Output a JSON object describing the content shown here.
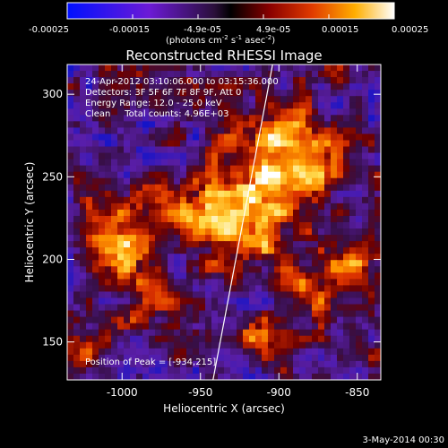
{
  "colorbar": {
    "tick_labels": [
      "-0.00025",
      "-0.00015",
      "-4.9e-05",
      "4.9e-05",
      "0.00015",
      "0.00025"
    ],
    "unit_label_parts": [
      "(photons cm",
      "-2",
      " s",
      "-1",
      " asec",
      "-2",
      ")"
    ]
  },
  "title": "Reconstructed RHESSI Image",
  "info_lines": [
    "24-Apr-2012 03:10:06.000 to 03:15:36.000",
    "Detectors: 3F 5F 6F 7F 8F 9F, Att 0",
    "Energy Range: 12.0 - 25.0 keV",
    "Clean     Total counts: 4.96E+03"
  ],
  "peak_label": "Position of Peak = [-934,215]",
  "x_axis": {
    "label": "Heliocentric X (arcsec)",
    "ticks": [
      "-1000",
      "-950",
      "-900",
      "-850"
    ],
    "tick_values": [
      -1000,
      -950,
      -900,
      -850
    ],
    "range": [
      -1035,
      -835
    ]
  },
  "y_axis": {
    "label": "Heliocentric Y (arcsec)",
    "ticks": [
      "150",
      "200",
      "250",
      "300"
    ],
    "tick_values": [
      150,
      200,
      250,
      300
    ],
    "range": [
      127,
      318
    ]
  },
  "limb_line": {
    "x1": -942,
    "y1": 127,
    "x2": -904,
    "y2": 318
  },
  "footer_date": "3-May-2014 00:30",
  "colors": {
    "background": "#000000",
    "text": "#ffffff",
    "limb": "#ffffff"
  },
  "colormap": "rainbow (blue-purple to red-yellow-white)"
}
